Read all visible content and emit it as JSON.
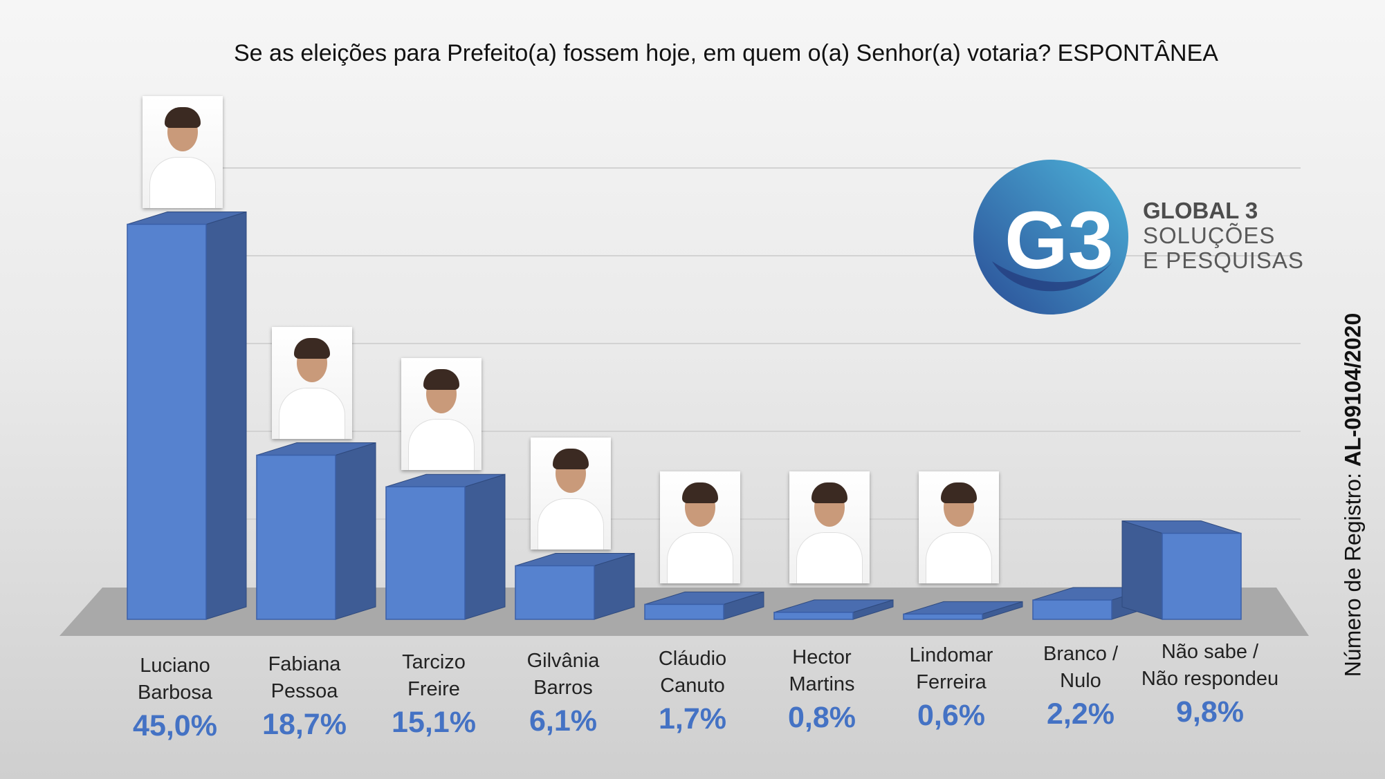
{
  "title": "Se as eleições para Prefeito(a) fossem hoje, em quem o(a) Senhor(a) votaria? ESPONTÂNEA",
  "logo": {
    "line1": "GLOBAL 3",
    "line2": "SOLUÇÕES",
    "line3": "E PESQUISAS",
    "mark_text": "G3",
    "colors": {
      "dark_blue": "#2a4d96",
      "light_blue": "#4db3d9"
    }
  },
  "registry": {
    "prefix": "Número de Registro: ",
    "number": "AL-09104/2020"
  },
  "colors": {
    "bar_front": "#5682cf",
    "bar_side": "#3e5c95",
    "bar_top": "#4a6db0",
    "value_text": "#4472C4",
    "floor": "#a9a9a9"
  },
  "chart_data": {
    "type": "bar",
    "title": "Se as eleições para Prefeito(a) fossem hoje, em quem o(a) Senhor(a) votaria? ESPONTÂNEA",
    "unit": "%",
    "categories": [
      [
        "Luciano",
        "Barbosa"
      ],
      [
        "Fabiana",
        "Pessoa"
      ],
      [
        "Tarcizo",
        "Freire"
      ],
      [
        "Gilvânia",
        "Barros"
      ],
      [
        "Cláudio",
        "Canuto"
      ],
      [
        "Hector",
        "Martins"
      ],
      [
        "Lindomar",
        "Ferreira"
      ],
      [
        "Branco /",
        "Nulo"
      ],
      [
        "Não sabe /",
        "Não respondeu"
      ]
    ],
    "values": [
      45.0,
      18.7,
      15.1,
      6.1,
      1.7,
      0.8,
      0.6,
      2.2,
      9.8
    ],
    "value_labels": [
      "45,0%",
      "18,7%",
      "15,1%",
      "6,1%",
      "1,7%",
      "0,8%",
      "0,6%",
      "2,2%",
      "9,8%"
    ],
    "photos": [
      "luciano-barbosa-photo",
      "fabiana-pessoa-photo",
      "tarcizo-freire-photo",
      "gilvania-barros-photo",
      "claudio-canuto-photo",
      "hector-martins-photo",
      "lindomar-ferreira-photo"
    ],
    "ylim": [
      0,
      50
    ],
    "grid": true,
    "legend": "none"
  }
}
